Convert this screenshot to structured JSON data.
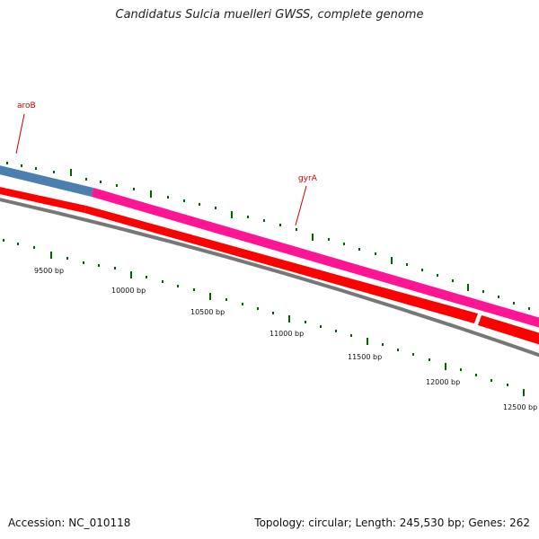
{
  "title": "Candidatus Sulcia muelleri GWSS, complete genome",
  "footer": {
    "accession": "Accession: NC_010118",
    "summary": "Topology: circular; Length: 245,530 bp; Genes: 262"
  },
  "genes": [
    {
      "name": "aroB",
      "color": "#4a7fb0"
    },
    {
      "name": "gyrA",
      "color": "#ff1493"
    }
  ],
  "colors": {
    "label": "#cc0000",
    "cds": "#ff0000",
    "backbone": "#777777",
    "ticks": "#006400"
  },
  "bp_ticks": [
    "9500 bp",
    "10000 bp",
    "10500 bp",
    "11000 bp",
    "11500 bp",
    "12000 bp",
    "12500 bp"
  ]
}
